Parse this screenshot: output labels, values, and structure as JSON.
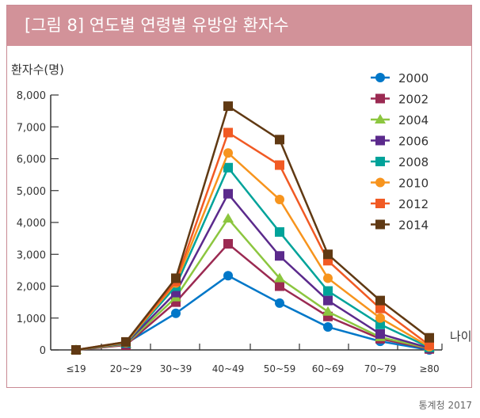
{
  "title": "[그림 8] 연도별 연령별 유방암 환자수",
  "source": "통계청 2017",
  "chart_data": {
    "type": "line",
    "title": "[그림 8] 연도별 연령별 유방암 환자수",
    "ylabel": "환자수(명)",
    "xlabel": "나이",
    "ylim": [
      0,
      8000
    ],
    "yticks": [
      "0",
      "1,000",
      "2,000",
      "3,000",
      "4,000",
      "5,000",
      "6,000",
      "7,000",
      "8,000"
    ],
    "categories": [
      "≤19",
      "20~29",
      "30~39",
      "40~49",
      "50~59",
      "60~69",
      "70~79",
      "≥80"
    ],
    "legend_position": "top-right",
    "series": [
      {
        "name": "2000",
        "color": "#0077c8",
        "marker": "circle",
        "values": [
          0,
          200,
          1150,
          2330,
          1470,
          720,
          270,
          0
        ]
      },
      {
        "name": "2002",
        "color": "#9b2a52",
        "marker": "square",
        "values": [
          0,
          150,
          1500,
          3330,
          2000,
          1050,
          350,
          30
        ]
      },
      {
        "name": "2004",
        "color": "#8cc63f",
        "marker": "triangle",
        "values": [
          0,
          180,
          1650,
          4120,
          2250,
          1200,
          400,
          50
        ]
      },
      {
        "name": "2006",
        "color": "#5b2a8c",
        "marker": "square",
        "values": [
          0,
          200,
          1800,
          4900,
          2950,
          1550,
          500,
          60
        ]
      },
      {
        "name": "2008",
        "color": "#00a39a",
        "marker": "square",
        "values": [
          0,
          220,
          2000,
          5720,
          3700,
          1850,
          800,
          80
        ]
      },
      {
        "name": "2010",
        "color": "#f7941d",
        "marker": "circle",
        "values": [
          0,
          230,
          2100,
          6180,
          4720,
          2250,
          1000,
          100
        ]
      },
      {
        "name": "2012",
        "color": "#f15a24",
        "marker": "square",
        "values": [
          0,
          250,
          2150,
          6820,
          5800,
          2800,
          1300,
          150
        ]
      },
      {
        "name": "2014",
        "color": "#603913",
        "marker": "square",
        "values": [
          0,
          250,
          2250,
          7650,
          6600,
          3000,
          1550,
          380
        ]
      }
    ]
  }
}
